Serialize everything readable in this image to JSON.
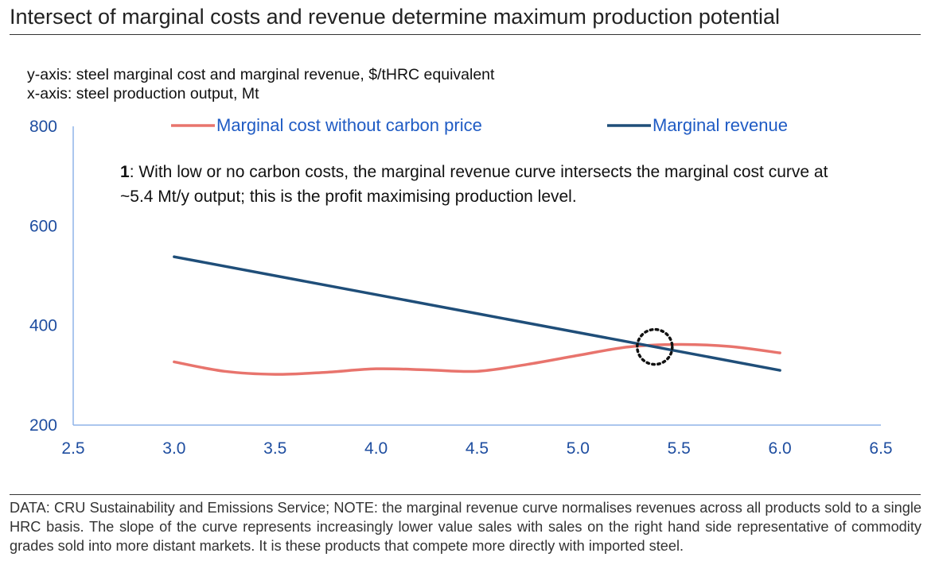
{
  "title": "Intersect of marginal costs and revenue determine maximum production potential",
  "y_axis_desc": "y-axis: steel marginal cost and marginal revenue, $/tHRC equivalent",
  "x_axis_desc": "x-axis: steel production output, Mt",
  "annotation": {
    "number": "1",
    "text": ": With low or no carbon costs, the marginal revenue curve intersects the marginal cost curve at ~5.4 Mt/y output; this is the profit maximising production level."
  },
  "footer": "DATA: CRU Sustainability and Emissions Service; NOTE: the marginal revenue curve normalises revenues across all products sold to a single HRC basis. The slope of the curve represents increasingly lower value sales with sales on the right hand side representative of commodity grades sold into more distant markets. It is these products that compete more directly with imported steel.",
  "colors": {
    "cost": "#e8746d",
    "revenue": "#1f4e79",
    "axis": "#8fb3e8",
    "tick_text": "#1f4ea0"
  },
  "chart_data": {
    "type": "line",
    "xlim": [
      2.5,
      6.5
    ],
    "ylim": [
      200,
      800
    ],
    "x_ticks": [
      "2.5",
      "3.0",
      "3.5",
      "4.0",
      "4.5",
      "5.0",
      "5.5",
      "6.0",
      "6.5"
    ],
    "y_ticks": [
      "200",
      "400",
      "600",
      "800"
    ],
    "legend_position": "top",
    "grid": false,
    "series": [
      {
        "name": "Marginal cost without carbon price",
        "x": [
          3.0,
          3.25,
          3.5,
          3.75,
          4.0,
          4.25,
          4.5,
          4.75,
          5.0,
          5.25,
          5.5,
          5.75,
          6.0
        ],
        "values": [
          327,
          308,
          302,
          306,
          313,
          311,
          308,
          322,
          340,
          357,
          362,
          358,
          345
        ]
      },
      {
        "name": "Marginal revenue",
        "x": [
          3.0,
          6.0
        ],
        "values": [
          538,
          310
        ]
      }
    ],
    "intersection_marker": {
      "x": 5.38,
      "y": 357
    }
  }
}
